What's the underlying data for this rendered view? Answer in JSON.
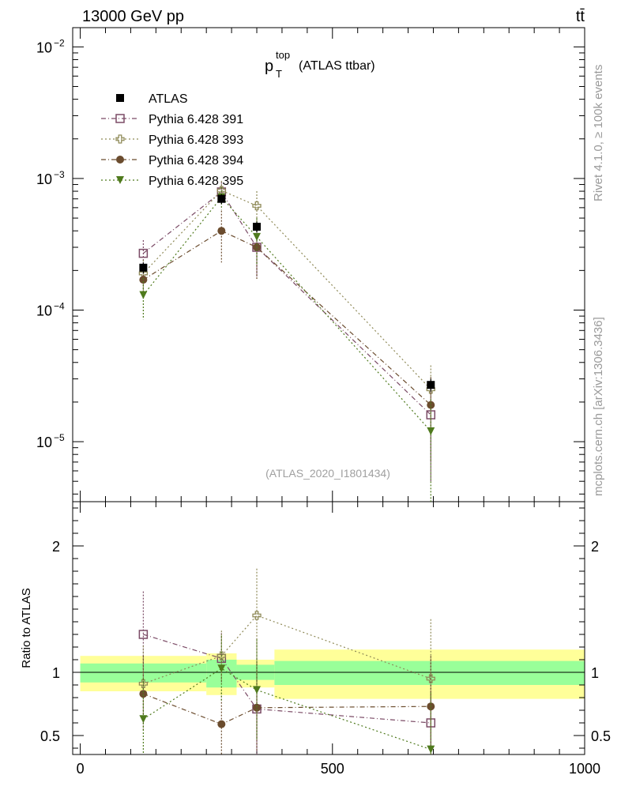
{
  "header": {
    "left": "13000 GeV pp",
    "right": "tt̄"
  },
  "side_labels": {
    "rivet": "Rivet 4.1.0, ≥ 100k events",
    "mcplots": "mcplots.cern.ch [arXiv:1306.3436]"
  },
  "chart_data": [
    {
      "panel": "main",
      "type": "scatter",
      "title_main": "p",
      "title_sup": "top",
      "title_sub": "T",
      "title_rest": "(ATLAS ttbar)",
      "watermark": "(ATLAS_2020_I1801434)",
      "yscale": "log",
      "ylim": [
        3.5e-06,
        0.014
      ],
      "xlim": [
        -15,
        1000
      ],
      "ytick_labels": [
        {
          "value": 0.01,
          "base": "10",
          "exp": "−2"
        },
        {
          "value": 0.001,
          "base": "10",
          "exp": "−3"
        },
        {
          "value": 0.0001,
          "base": "10",
          "exp": "−4"
        },
        {
          "value": 1e-05,
          "base": "10",
          "exp": "−5"
        }
      ],
      "legend_position": "top-left",
      "series": [
        {
          "name": "ATLAS",
          "color": "#000000",
          "marker": "square-filled",
          "dash": "",
          "x": [
            125,
            280,
            350,
            695
          ],
          "y": [
            0.00021,
            0.0007,
            0.00043,
            2.7e-05
          ],
          "err": [
            2e-05,
            6e-05,
            4e-05,
            3e-06
          ]
        },
        {
          "name": "Pythia 6.428 391",
          "color": "#7b4b66",
          "marker": "square-open",
          "dash": "6,3,1,3",
          "x": [
            125,
            280,
            350,
            695
          ],
          "y": [
            0.00027,
            0.00079,
            0.0003,
            1.6e-05
          ],
          "err": [
            7e-05,
            0.00015,
            0.00012,
            1.1e-05
          ]
        },
        {
          "name": "Pythia 6.428 393",
          "color": "#8f8a58",
          "marker": "cross-open",
          "dash": "2,3",
          "x": [
            125,
            280,
            350,
            695
          ],
          "y": [
            0.00019,
            0.00081,
            0.00062,
            2.5e-05
          ],
          "err": [
            5e-05,
            0.00015,
            0.00018,
            1.3e-05
          ]
        },
        {
          "name": "Pythia 6.428 394",
          "color": "#6b4c2e",
          "marker": "circle-filled",
          "dash": "6,3,1,3",
          "x": [
            125,
            280,
            350,
            695
          ],
          "y": [
            0.00017,
            0.0004,
            0.0003,
            1.9e-05
          ],
          "err": [
            5e-05,
            0.00017,
            0.00013,
            1.2e-05
          ]
        },
        {
          "name": "Pythia 6.428 395",
          "color": "#4f7a1d",
          "marker": "triangle-down",
          "dash": "2,3",
          "x": [
            125,
            280,
            350,
            695
          ],
          "y": [
            0.00013,
            0.00072,
            0.00036,
            1.2e-05
          ],
          "err": [
            4.5e-05,
            0.00014,
            0.00014,
            9e-06
          ]
        }
      ]
    },
    {
      "panel": "ratio",
      "type": "scatter",
      "ylabel": "Ratio to ATLAS",
      "ylim": [
        0.35,
        2.35
      ],
      "xlim": [
        -15,
        1000
      ],
      "ytick_labels": [
        {
          "value": 2,
          "label": "2"
        },
        {
          "value": 1,
          "label": "1"
        },
        {
          "value": 0.5,
          "label": "0.5"
        }
      ],
      "xtick_labels": [
        {
          "value": 0,
          "label": "0"
        },
        {
          "value": 500,
          "label": "500"
        },
        {
          "value": 1000,
          "label": "1000"
        }
      ],
      "bands": [
        {
          "x0": 0,
          "x1": 250,
          "yellow": [
            0.85,
            1.13
          ],
          "green": [
            0.92,
            1.07
          ]
        },
        {
          "x0": 250,
          "x1": 310,
          "yellow": [
            0.82,
            1.15
          ],
          "green": [
            0.88,
            1.1
          ]
        },
        {
          "x0": 310,
          "x1": 385,
          "yellow": [
            0.88,
            1.1
          ],
          "green": [
            0.94,
            1.06
          ]
        },
        {
          "x0": 385,
          "x1": 1000,
          "yellow": [
            0.79,
            1.18
          ],
          "green": [
            0.9,
            1.09
          ]
        }
      ],
      "series": [
        {
          "name": "Pythia 6.428 391",
          "x": [
            125,
            280,
            350,
            695
          ],
          "y": [
            1.3,
            1.11,
            0.71,
            0.6
          ],
          "err": [
            0.34,
            0.2,
            0.4,
            0.5
          ]
        },
        {
          "name": "Pythia 6.428 393",
          "x": [
            125,
            280,
            350,
            695
          ],
          "y": [
            0.91,
            1.13,
            1.45,
            0.95
          ],
          "err": [
            0.3,
            0.2,
            0.37,
            0.47
          ]
        },
        {
          "name": "Pythia 6.428 394",
          "x": [
            125,
            280,
            350,
            695
          ],
          "y": [
            0.83,
            0.59,
            0.72,
            0.73
          ],
          "err": [
            0.3,
            0.25,
            0.35,
            0.4
          ]
        },
        {
          "name": "Pythia 6.428 395",
          "x": [
            125,
            280,
            350,
            695
          ],
          "y": [
            0.63,
            1.03,
            0.86,
            0.39
          ],
          "err": [
            0.32,
            0.26,
            0.4,
            0.45
          ]
        }
      ]
    }
  ]
}
